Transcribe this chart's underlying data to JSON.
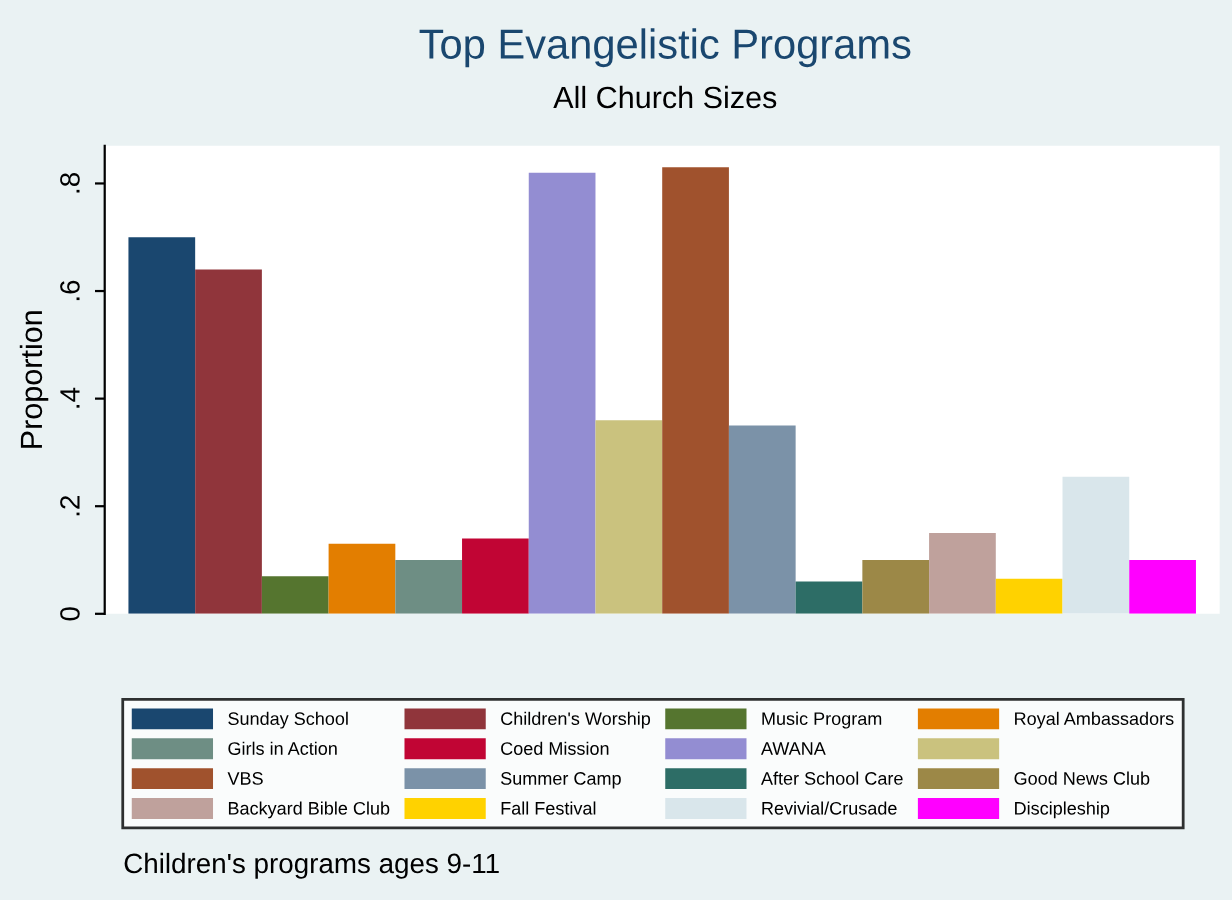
{
  "chart_data": {
    "type": "bar",
    "title": "Top Evangelistic Programs",
    "subtitle": "All Church Sizes",
    "ylabel": "Proportion",
    "categories": [
      null
    ],
    "series": [
      {
        "name": "Sunday School",
        "color": "#1a476f",
        "values": [
          0.7
        ]
      },
      {
        "name": "Children's Worship",
        "color": "#90353b",
        "values": [
          0.64
        ]
      },
      {
        "name": "Music Program",
        "color": "#55752f",
        "values": [
          0.07
        ]
      },
      {
        "name": "Royal Ambassadors",
        "color": "#e37e00",
        "values": [
          0.13
        ]
      },
      {
        "name": "Girls in Action",
        "color": "#6e8e84",
        "values": [
          0.1
        ]
      },
      {
        "name": "Coed Mission",
        "color": "#c10534",
        "values": [
          0.14
        ]
      },
      {
        "name": "AWANA",
        "color": "#938dd2",
        "values": [
          0.82
        ]
      },
      {
        "color": "#cac27e",
        "values": [
          0.36
        ]
      },
      {
        "name": "VBS",
        "color": "#a0522d",
        "values": [
          0.83
        ]
      },
      {
        "name": "Summer Camp",
        "color": "#7b92a8",
        "values": [
          0.35
        ]
      },
      {
        "name": "After School Care",
        "color": "#2d6d66",
        "values": [
          0.06
        ]
      },
      {
        "name": "Good News Club",
        "color": "#9c8847",
        "values": [
          0.1
        ]
      },
      {
        "name": "Backyard Bible Club",
        "color": "#bfa19c",
        "values": [
          0.15
        ]
      },
      {
        "name": "Fall Festival",
        "color": "#ffd200",
        "values": [
          0.065
        ]
      },
      {
        "name": "Revivial/Crusade",
        "color": "#d9e6eb",
        "values": [
          0.255
        ]
      },
      {
        "name": "Discipleship",
        "color": "#ff00ff",
        "values": [
          0.1
        ]
      }
    ],
    "ylim": [
      0,
      0.87
    ],
    "yticks": [
      0,
      {
        "value": 0.2,
        "label": ".2"
      },
      {
        "value": 0.4,
        "label": ".4"
      },
      {
        "value": 0.6,
        "label": ".6"
      },
      {
        "value": 0.8,
        "label": ".8"
      }
    ],
    "legend": "bottom",
    "annotations": [
      "Children's programs ages 9-11"
    ]
  }
}
